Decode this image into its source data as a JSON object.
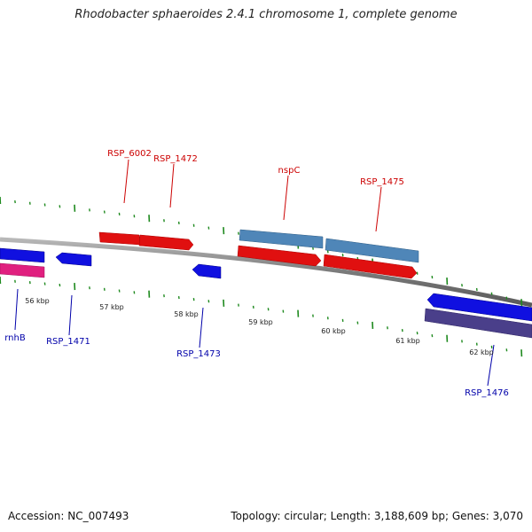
{
  "title": "Rhodobacter sphaeroides 2.4.1 chromosome 1, complete genome",
  "footer": {
    "accession": "Accession: NC_007493",
    "topology": "Topology: circular; Length: 3,188,609 bp; Genes: 3,070"
  },
  "scale_labels": [
    "56 kbp",
    "57 kbp",
    "58 kbp",
    "59 kbp",
    "60 kbp",
    "61 kbp",
    "62 kbp"
  ],
  "colors": {
    "backbone": "#8c8c8c",
    "tick": "#1f8a1f",
    "label_top": "#cc0000",
    "label_bottom": "#0000aa",
    "red_gene": "#e01010",
    "blue_gene": "#1010e0",
    "steel_gene": "#4f86b8",
    "pink_gene": "#e0207f",
    "purple_gene": "#4a3f8a"
  },
  "gene_labels_top": [
    "RSP_6002",
    "RSP_1472",
    "nspC",
    "RSP_1475"
  ],
  "gene_labels_bottom": [
    "rnhB",
    "RSP_1471",
    "RSP_1473",
    "RSP_1476"
  ]
}
